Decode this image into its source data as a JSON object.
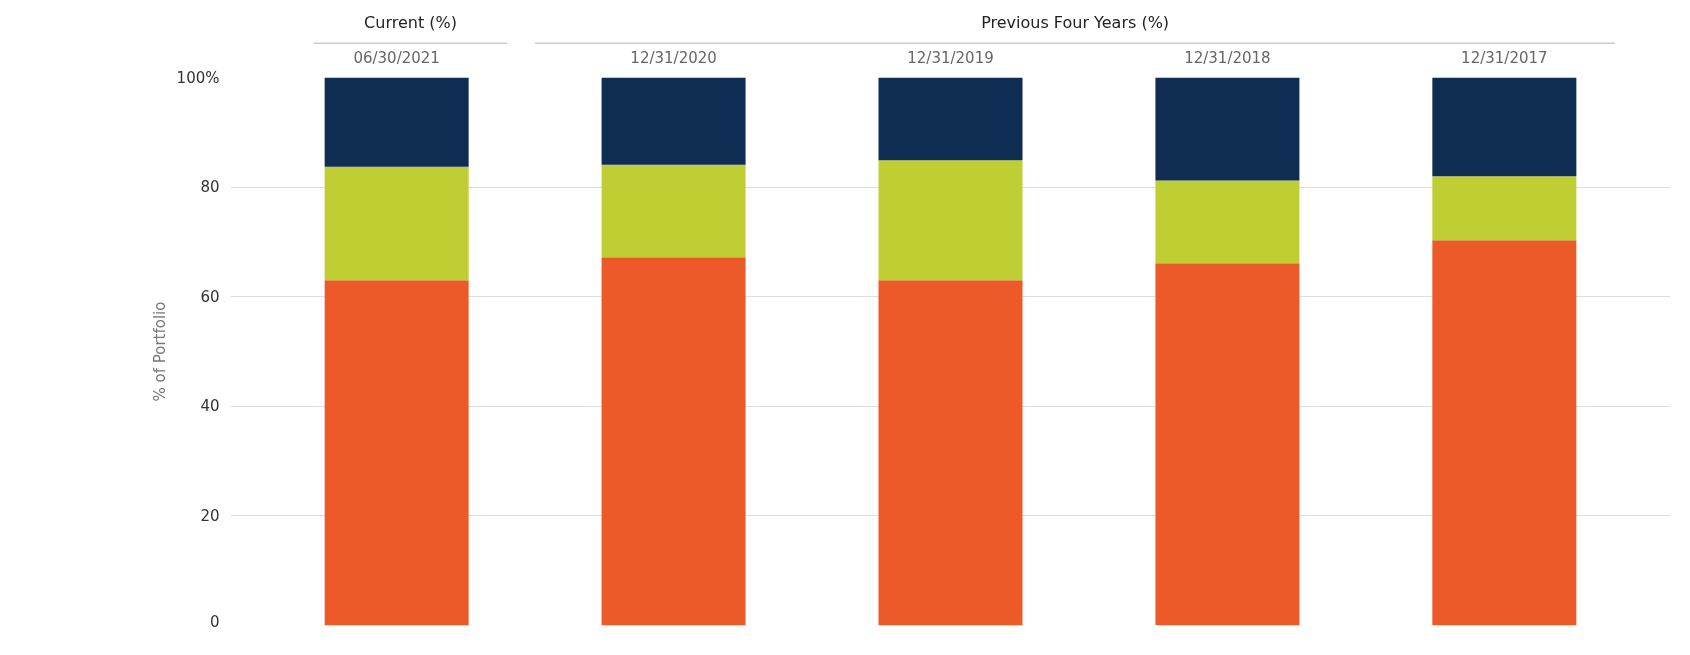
{
  "chart_data": {
    "type": "bar",
    "stacked": true,
    "ylabel": "% of Portfolio",
    "categories": [
      "06/30/2021",
      "12/31/2020",
      "12/31/2019",
      "12/31/2018",
      "12/31/2017"
    ],
    "series": [
      {
        "color": "#ec5a29",
        "values": [
          63.0,
          67.2,
          63.0,
          66.1,
          70.3
        ]
      },
      {
        "color": "#bfce33",
        "values": [
          20.7,
          16.9,
          21.9,
          15.1,
          11.7
        ]
      },
      {
        "color": "#0f2d52",
        "values": [
          16.3,
          15.9,
          15.1,
          18.8,
          18.0
        ]
      }
    ],
    "ylim": [
      0,
      100
    ],
    "yticks": [
      0,
      20,
      40,
      60,
      80,
      {
        "value": 100,
        "label": "100%"
      }
    ],
    "grid": "y",
    "annotations": [
      "Current (%)",
      "Previous Four Years (%)"
    ]
  }
}
